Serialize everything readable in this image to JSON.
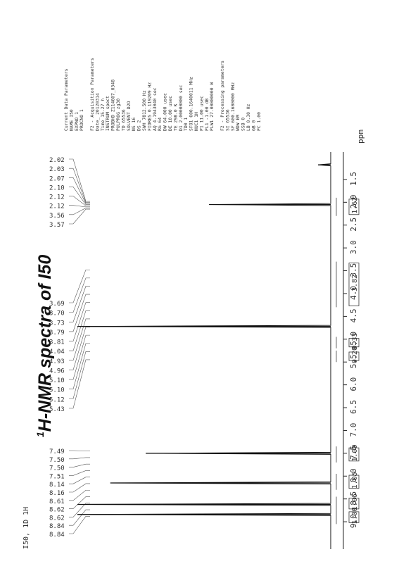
{
  "chart_data": {
    "type": "line",
    "title": "1H-NMR spectra of I50",
    "title_prefix": "1",
    "title_rest": "H-NMR spectra of I50",
    "sample_label": "I50, 1D 1H",
    "xlabel": "ppm",
    "xlim": [
      9.6,
      0.9
    ],
    "x_ticks": [
      "9.0",
      "8.5",
      "8.0",
      "7.5",
      "7.0",
      "6.5",
      "6.0",
      "5.5",
      "5.0",
      "4.5",
      "4.0",
      "3.5",
      "3.0",
      "2.5",
      "2.0",
      "1.5"
    ],
    "peak_labels": [
      "8.84",
      "8.84",
      "8.62",
      "8.62",
      "8.61",
      "8.16",
      "8.14",
      "7.51",
      "7.50",
      "7.50",
      "7.49",
      "5.43",
      "5.12",
      "5.10",
      "5.10",
      "4.96",
      "4.93",
      "4.04",
      "3.81",
      "3.79",
      "3.73",
      "3.70",
      "3.69",
      "3.57",
      "3.56",
      "2.12",
      "2.12",
      "2.10",
      "2.07",
      "2.03",
      "2.02"
    ],
    "peaks": [
      {
        "ppm": 8.84,
        "height": 1.0
      },
      {
        "ppm": 8.62,
        "height": 1.0
      },
      {
        "ppm": 8.15,
        "height": 0.87
      },
      {
        "ppm": 7.5,
        "height": 0.73
      },
      {
        "ppm": 4.72,
        "height": 1.0
      },
      {
        "ppm": 2.05,
        "height": 0.48
      },
      {
        "ppm": 1.18,
        "height": 0.05
      }
    ],
    "integrals": [
      {
        "from": 9.05,
        "to": 8.75,
        "value": "1.00"
      },
      {
        "from": 8.75,
        "to": 8.45,
        "value": "1.06"
      },
      {
        "from": 8.3,
        "to": 7.95,
        "value": "1.05"
      },
      {
        "from": 7.7,
        "to": 7.35,
        "value": "1.09"
      },
      {
        "from": 5.5,
        "to": 5.25,
        "value": "0.20"
      },
      {
        "from": 5.2,
        "to": 4.95,
        "value": "0.33"
      },
      {
        "from": 4.3,
        "to": 3.3,
        "value": "3.82"
      },
      {
        "from": 2.3,
        "to": 1.9,
        "value": "1.62"
      }
    ],
    "parameters": [
      "Current Data Parameters",
      "NAME          I50",
      "EXPNO           1",
      "PROCNO          1",
      "",
      "F2 - Acquisition Parameters",
      "Date_      20120314",
      "Time           15.27 h",
      "INSTRUM        spect",
      "PROBHD   Z114607_0348",
      "PULPROG        zg30",
      "TD             65536",
      "SOLVENT          D2O",
      "NS                16",
      "DS                 2",
      "SWH        7812.500 Hz",
      "FIDRES     0.119209 Hz",
      "AQ        4.1943040 sec",
      "RG                64",
      "DW            64.000 usec",
      "DE             10.00 usec",
      "TE             298.0 K",
      "D1        2.00000000 sec",
      "TD0                1",
      "SFO1     600.1640011 MHz",
      "NUC1              1H",
      "P1             11.00 usec",
      "PL1          -1.00 dB",
      "PLW1    27.00000000 W",
      "",
      "F2 - Processing parameters",
      "SI             65536",
      "SF       600.1600000 MHz",
      "WDW               EM",
      "SSB                0",
      "LB              0.30 Hz",
      "GB                 0",
      "PC              1.00"
    ]
  }
}
